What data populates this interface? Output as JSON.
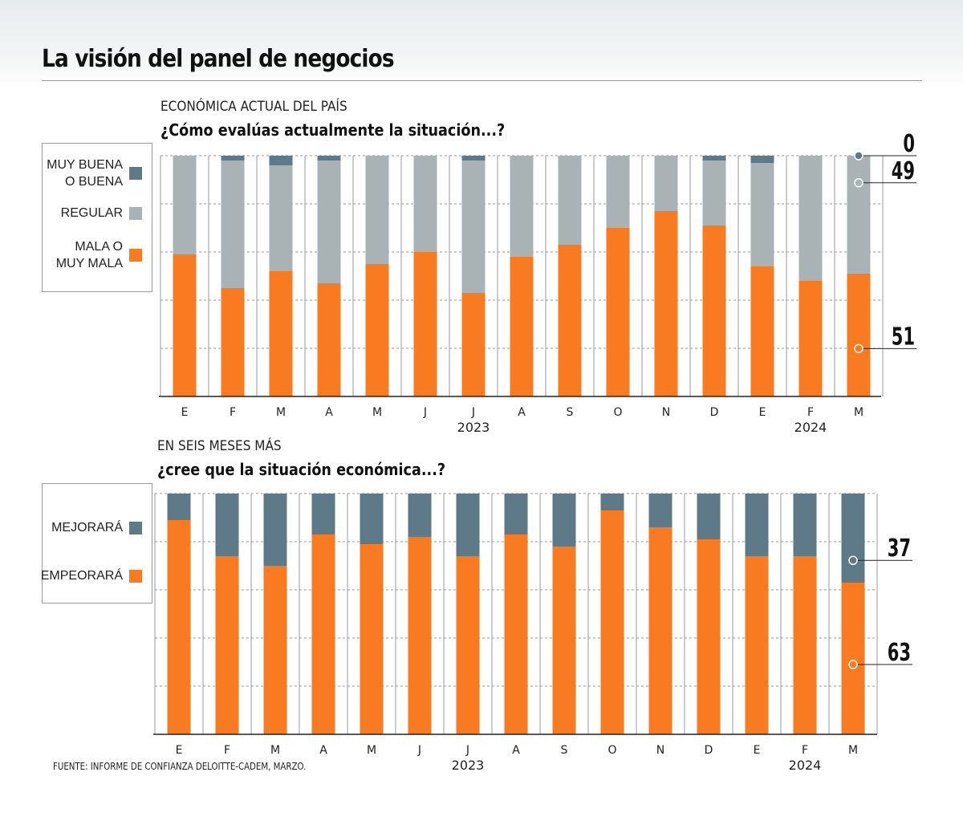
{
  "page": {
    "title": "La visión del panel de negocios",
    "source": "FUENTE: INFORME DE CONFIANZA DELOITTE-CADEM, MARZO."
  },
  "colors": {
    "orange": "#f87a21",
    "gray": "#a9b3b5",
    "slate": "#5e7987",
    "grid": "#9a9a9a",
    "axis": "#222222"
  },
  "chart_data": [
    {
      "type": "bar",
      "stacked": true,
      "overline": "ECONÓMICA ACTUAL DEL PAÍS",
      "title": "¿Cómo evalúas actualmente la situación...?",
      "categories": [
        "E",
        "F",
        "M",
        "A",
        "M",
        "J",
        "J",
        "A",
        "S",
        "O",
        "N",
        "D",
        "E",
        "F",
        "M"
      ],
      "year_labels": [
        {
          "label": "2023",
          "index": 6.5
        },
        {
          "label": "2024",
          "index": 13.5
        }
      ],
      "ylim": [
        0,
        100
      ],
      "grid": true,
      "legend_position": "left",
      "series": [
        {
          "name": "MALA O\nMUY MALA",
          "color": "#f87a21",
          "values": [
            59,
            45,
            52,
            47,
            55,
            60,
            43,
            58,
            63,
            70,
            77,
            71,
            54,
            48,
            51
          ]
        },
        {
          "name": "REGULAR",
          "color": "#a9b3b5",
          "values": [
            41,
            53,
            44,
            51,
            45,
            40,
            55,
            42,
            37,
            30,
            23,
            27,
            43,
            52,
            49
          ]
        },
        {
          "name": "MUY BUENA\nO BUENA",
          "color": "#5e7987",
          "values": [
            0,
            2,
            4,
            2,
            0,
            0,
            2,
            0,
            0,
            0,
            0,
            2,
            3,
            0,
            0
          ]
        }
      ],
      "end_labels": [
        "0",
        "49",
        "51"
      ]
    },
    {
      "type": "bar",
      "stacked": true,
      "overline": "EN SEIS MESES MÁS",
      "title": "¿cree que la situación económica...?",
      "categories": [
        "E",
        "F",
        "M",
        "A",
        "M",
        "J",
        "J",
        "A",
        "S",
        "O",
        "N",
        "D",
        "E",
        "F",
        "M"
      ],
      "year_labels": [
        {
          "label": "2023",
          "index": 6.5
        },
        {
          "label": "2024",
          "index": 13.5
        }
      ],
      "ylim": [
        0,
        100
      ],
      "grid": true,
      "legend_position": "left",
      "series": [
        {
          "name": "EMPEORARÁ",
          "color": "#f87a21",
          "values": [
            89,
            74,
            70,
            83,
            79,
            82,
            74,
            83,
            78,
            93,
            86,
            81,
            74,
            74,
            63
          ]
        },
        {
          "name": "MEJORARÁ",
          "color": "#5e7987",
          "values": [
            11,
            26,
            30,
            17,
            21,
            18,
            26,
            17,
            22,
            7,
            14,
            19,
            26,
            26,
            37
          ]
        }
      ],
      "end_labels": [
        "37",
        "63"
      ]
    }
  ]
}
